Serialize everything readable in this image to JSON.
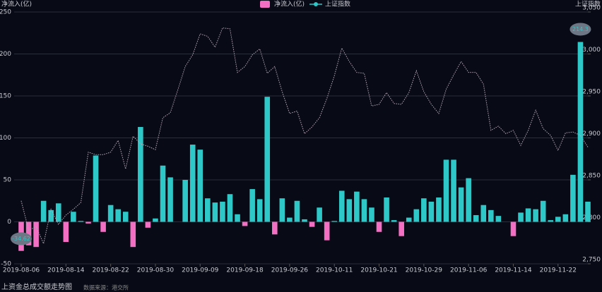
{
  "chart_data": {
    "type": "bar-line",
    "legend": "top",
    "grid": true,
    "mark_points": [
      "min",
      "max"
    ],
    "y_axis_title": "净流入(亿)",
    "y2_axis_title": "上证指数",
    "footnote": "上资金总成交额走势图",
    "source": "数据来源：港交所",
    "categories": [
      "2019-08-06",
      null,
      null,
      null,
      null,
      null,
      "2019-08-14",
      null,
      null,
      null,
      null,
      null,
      "2019-08-22",
      null,
      null,
      null,
      null,
      null,
      "2019-08-30",
      null,
      null,
      null,
      null,
      null,
      "2019-09-09",
      null,
      null,
      null,
      null,
      null,
      "2019-09-18",
      null,
      null,
      null,
      null,
      null,
      "2019-09-26",
      null,
      null,
      null,
      null,
      null,
      "2019-10-11",
      null,
      null,
      null,
      null,
      null,
      "2019-10-21",
      null,
      null,
      null,
      null,
      null,
      "2019-10-29",
      null,
      null,
      null,
      null,
      null,
      "2019-11-06",
      null,
      null,
      null,
      null,
      null,
      "2019-11-14",
      null,
      null,
      null,
      null,
      null,
      "2019-11-22",
      null,
      null,
      null,
      null
    ],
    "series": [
      {
        "name": "净流入(亿)",
        "type": "bar",
        "color": "#2ec8c8",
        "negative_color": "#f26fc4",
        "values": [
          -34.62,
          -28,
          -30,
          25,
          14,
          22,
          -24,
          12,
          1,
          -2,
          79,
          -12,
          20,
          15,
          12,
          -30,
          113,
          -7,
          4,
          67,
          53,
          0,
          50,
          92,
          86,
          28,
          23,
          24,
          33,
          9,
          -5,
          39,
          27,
          149,
          -15,
          28,
          5,
          25,
          3,
          -6,
          17,
          -22,
          1,
          37,
          27,
          36,
          27,
          17,
          -12,
          29,
          2,
          -17,
          5,
          15,
          28,
          24,
          29,
          74,
          74,
          41,
          52,
          8,
          20,
          14,
          7,
          0,
          -17,
          11,
          16,
          15,
          25,
          2,
          6,
          9,
          56,
          214.3,
          24
        ]
      },
      {
        "name": "上证指数",
        "type": "line",
        "axis": "y2",
        "color": "#b8a7b8",
        "values": [
          2825,
          2790,
          2794,
          2774,
          2815,
          2797,
          2808,
          2815,
          2823,
          2883,
          2880,
          2880,
          2883,
          2897,
          2863,
          2902,
          2893,
          2890,
          2886,
          2924,
          2930,
          2957,
          2985,
          2999,
          3024,
          3021,
          3008,
          3031,
          3030,
          2978,
          2985,
          2999,
          3006,
          2977,
          2985,
          2955,
          2929,
          2932,
          2905,
          2913,
          2924,
          2947,
          2974,
          3007,
          2991,
          2978,
          2977,
          2938,
          2940,
          2954,
          2941,
          2940,
          2954,
          2980,
          2955,
          2940,
          2929,
          2958,
          2975,
          2991,
          2978,
          2978,
          2964,
          2909,
          2914,
          2905,
          2909,
          2891,
          2909,
          2933,
          2911,
          2903,
          2885,
          2906,
          2907,
          2903,
          2889
        ]
      }
    ],
    "ylim": [
      -50,
      250
    ],
    "yticks": [
      -50,
      0,
      50,
      100,
      150,
      200,
      250
    ],
    "y2lim": [
      2750,
      3050
    ],
    "y2ticks": [
      {
        "value": 2750,
        "label": "2,750"
      },
      {
        "value": 2800,
        "label": "2,800"
      },
      {
        "value": 2850,
        "label": "2,850"
      },
      {
        "value": 2900,
        "label": "2,900"
      },
      {
        "value": 2950,
        "label": "2,950"
      },
      {
        "value": 3000,
        "label": "3,000"
      },
      {
        "value": 3050,
        "label": "3,050"
      }
    ]
  }
}
